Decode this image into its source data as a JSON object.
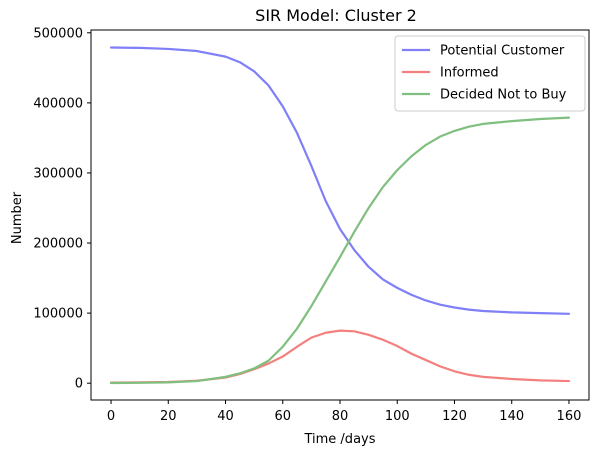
{
  "chart_data": {
    "type": "line",
    "title": "SIR Model: Cluster 2",
    "xlabel": "Time /days",
    "ylabel": "Number",
    "xlim": [
      -7,
      167
    ],
    "ylim": [
      -24000,
      504000
    ],
    "xticks": [
      0,
      20,
      40,
      60,
      80,
      100,
      120,
      140,
      160
    ],
    "yticks": [
      0,
      100000,
      200000,
      300000,
      400000,
      500000
    ],
    "grid": false,
    "legend_position": "top-right",
    "x": [
      0,
      10,
      20,
      30,
      40,
      45,
      50,
      55,
      60,
      65,
      70,
      75,
      80,
      85,
      90,
      95,
      100,
      105,
      110,
      115,
      120,
      125,
      130,
      140,
      150,
      160
    ],
    "series": [
      {
        "name": "Potential Customer",
        "color": "#7f7ff7",
        "values": [
          479000,
          478500,
          477000,
          474000,
          466000,
          458000,
          445000,
          425000,
          395000,
          357000,
          310000,
          260000,
          220000,
          190000,
          166000,
          148000,
          136000,
          126000,
          118000,
          112000,
          108000,
          105000,
          103000,
          101000,
          100000,
          99000
        ]
      },
      {
        "name": "Informed",
        "color": "#f47f7f",
        "values": [
          800,
          1200,
          1800,
          3500,
          8000,
          13000,
          20000,
          28000,
          38000,
          52000,
          65000,
          72000,
          75000,
          74000,
          69000,
          62000,
          53000,
          42000,
          33000,
          24000,
          17000,
          12000,
          9000,
          6000,
          4000,
          3000
        ]
      },
      {
        "name": "Decided Not to Buy",
        "color": "#7fbf7f",
        "values": [
          300,
          500,
          1200,
          3000,
          9000,
          14000,
          21000,
          32000,
          52000,
          78000,
          110000,
          145000,
          180000,
          216000,
          250000,
          280000,
          304000,
          324000,
          340000,
          352000,
          360000,
          366000,
          370000,
          374000,
          377000,
          379000
        ]
      }
    ]
  }
}
